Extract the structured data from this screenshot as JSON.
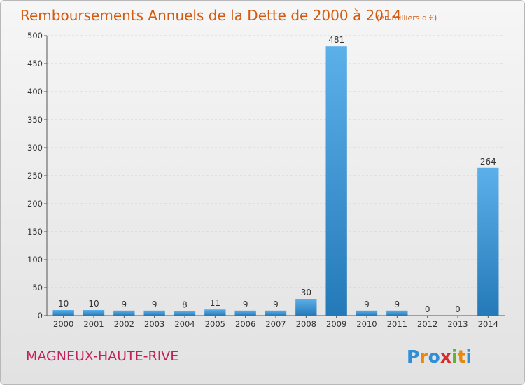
{
  "chart_data": {
    "type": "bar",
    "title": "Remboursements Annuels de la Dette de 2000 à 2014",
    "subtitle": "(en milliers d'€)",
    "categories": [
      "2000",
      "2001",
      "2002",
      "2003",
      "2004",
      "2005",
      "2006",
      "2007",
      "2008",
      "2009",
      "2010",
      "2011",
      "2012",
      "2013",
      "2014"
    ],
    "values": [
      10,
      10,
      9,
      9,
      8,
      11,
      9,
      9,
      30,
      481,
      9,
      9,
      0,
      0,
      264
    ],
    "ylim": [
      0,
      500
    ],
    "yticks": [
      0,
      50,
      100,
      150,
      200,
      250,
      300,
      350,
      400,
      450,
      500
    ],
    "grid": true,
    "bar_color": "#3d92d1",
    "bar_color_light": "#5cb0ea"
  },
  "footer": {
    "commune": "MAGNEUX-HAUTE-RIVE",
    "logo": "Proxiti",
    "logo_colors": [
      "#2e8fd6",
      "#e8890c",
      "#2e8fd6",
      "#d92b2b",
      "#63b12e",
      "#e8890c",
      "#2e8fd6"
    ]
  }
}
